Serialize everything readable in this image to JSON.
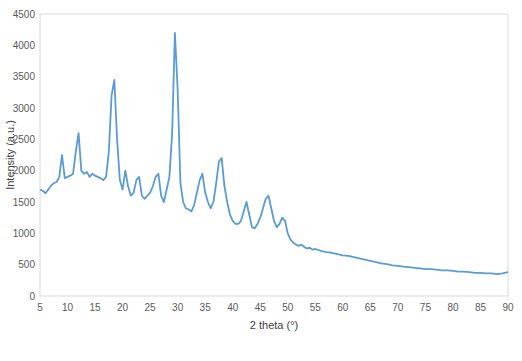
{
  "chart_data": {
    "type": "line",
    "x_label": "2 theta (°)",
    "y_label": "Intensity (a.u.)",
    "color": "#5b9bd5",
    "x": [
      5,
      5.5,
      6,
      6.5,
      7,
      7.5,
      8,
      8.5,
      9,
      9.5,
      10,
      10.5,
      11,
      11.5,
      12,
      12.5,
      13,
      13.5,
      14,
      14.5,
      15,
      15.5,
      16,
      16.5,
      17,
      17.5,
      18,
      18.5,
      19,
      19.5,
      20,
      20.5,
      21,
      21.5,
      22,
      22.5,
      23,
      23.5,
      24,
      24.5,
      25,
      25.5,
      26,
      26.5,
      27,
      27.5,
      28,
      28.5,
      29,
      29.5,
      30,
      30.5,
      31,
      31.5,
      32,
      32.5,
      33,
      33.5,
      34,
      34.5,
      35,
      35.5,
      36,
      36.5,
      37,
      37.5,
      38,
      38.5,
      39,
      39.5,
      40,
      40.5,
      41,
      41.5,
      42,
      42.5,
      43,
      43.5,
      44,
      44.5,
      45,
      45.5,
      46,
      46.5,
      47,
      47.5,
      48,
      48.5,
      49,
      49.5,
      50,
      50.5,
      51,
      51.5,
      52,
      52.5,
      53,
      53.5,
      54,
      54.5,
      55,
      56,
      57,
      58,
      59,
      60,
      61,
      62,
      63,
      64,
      65,
      66,
      67,
      68,
      69,
      70,
      71,
      72,
      73,
      74,
      75,
      76,
      77,
      78,
      79,
      80,
      81,
      82,
      83,
      84,
      85,
      86,
      87,
      88,
      89,
      90
    ],
    "values": [
      1700,
      1680,
      1640,
      1700,
      1760,
      1800,
      1820,
      1900,
      2250,
      1880,
      1900,
      1920,
      1950,
      2300,
      2600,
      2000,
      1950,
      1980,
      1900,
      1950,
      1920,
      1900,
      1880,
      1850,
      1900,
      2300,
      3200,
      3450,
      2500,
      1850,
      1700,
      2000,
      1750,
      1600,
      1650,
      1850,
      1900,
      1600,
      1550,
      1600,
      1650,
      1750,
      1900,
      1950,
      1600,
      1500,
      1700,
      1900,
      2600,
      4200,
      3300,
      1800,
      1500,
      1400,
      1380,
      1350,
      1450,
      1650,
      1850,
      1950,
      1650,
      1500,
      1400,
      1500,
      1800,
      2150,
      2200,
      1750,
      1500,
      1300,
      1200,
      1150,
      1150,
      1200,
      1350,
      1500,
      1300,
      1100,
      1080,
      1150,
      1250,
      1400,
      1550,
      1600,
      1400,
      1200,
      1100,
      1150,
      1250,
      1200,
      1000,
      900,
      850,
      820,
      800,
      820,
      780,
      760,
      770,
      740,
      750,
      720,
      700,
      690,
      670,
      650,
      640,
      620,
      600,
      580,
      560,
      540,
      520,
      510,
      490,
      480,
      470,
      460,
      450,
      440,
      430,
      430,
      420,
      410,
      410,
      400,
      390,
      390,
      380,
      370,
      370,
      360,
      360,
      350,
      360,
      380
    ],
    "xlim": [
      5,
      90
    ],
    "ylim": [
      0,
      4500
    ],
    "xticks": [
      5,
      10,
      15,
      20,
      25,
      30,
      35,
      40,
      45,
      50,
      55,
      60,
      65,
      70,
      75,
      80,
      85,
      90
    ],
    "yticks": [
      0,
      500,
      1000,
      1500,
      2000,
      2500,
      3000,
      3500,
      4000,
      4500
    ],
    "grid": false
  }
}
